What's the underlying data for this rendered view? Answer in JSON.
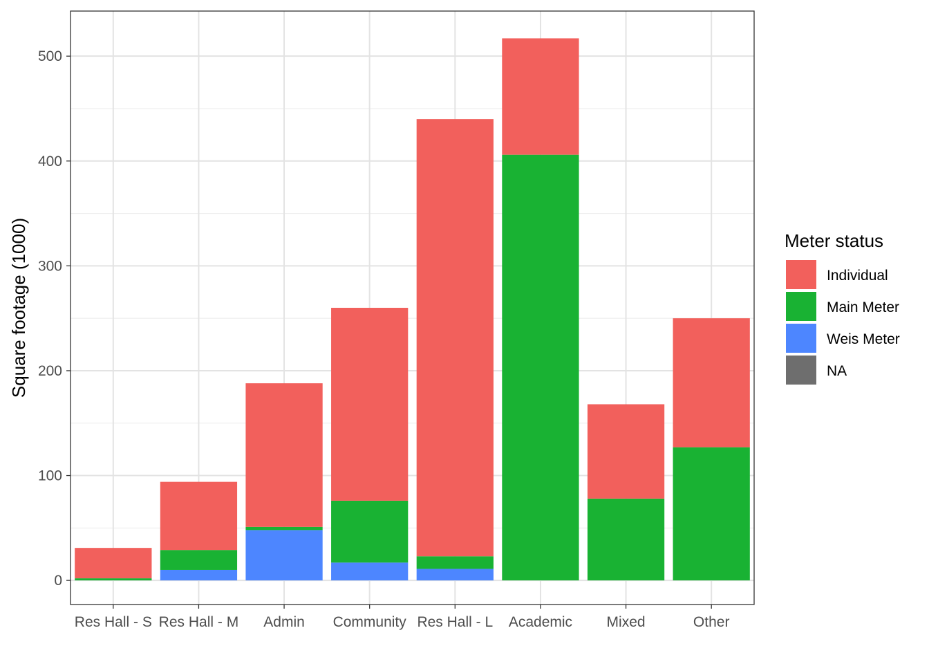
{
  "chart_data": {
    "type": "bar",
    "stacked": true,
    "categories": [
      "Res Hall - S",
      "Res Hall - M",
      "Admin",
      "Community",
      "Res Hall - L",
      "Academic",
      "Mixed",
      "Other"
    ],
    "series": [
      {
        "name": "Weis Meter",
        "color": "#4d86ff",
        "values": [
          0,
          10,
          48,
          17,
          11,
          0,
          0,
          0
        ]
      },
      {
        "name": "Main Meter",
        "color": "#19b233",
        "values": [
          2,
          19,
          3,
          59,
          12,
          406,
          78,
          127
        ]
      },
      {
        "name": "Individual",
        "color": "#f2605c",
        "values": [
          29,
          65,
          137,
          184,
          417,
          111,
          90,
          123
        ]
      },
      {
        "name": "NA",
        "color": "#6e6e6e",
        "values": [
          0,
          0,
          0,
          0,
          0,
          0,
          0,
          0
        ]
      }
    ],
    "ylabel": "Square footage (1000)",
    "xlabel": "",
    "ylim": [
      -23,
      543
    ],
    "yticks": [
      0,
      100,
      200,
      300,
      400,
      500
    ],
    "grid": true,
    "legend": {
      "title": "Meter status",
      "position": "right",
      "entries": [
        {
          "label": "Individual",
          "color": "#f2605c"
        },
        {
          "label": "Main Meter",
          "color": "#19b233"
        },
        {
          "label": "Weis Meter",
          "color": "#4d86ff"
        },
        {
          "label": "NA",
          "color": "#6e6e6e"
        }
      ]
    }
  }
}
